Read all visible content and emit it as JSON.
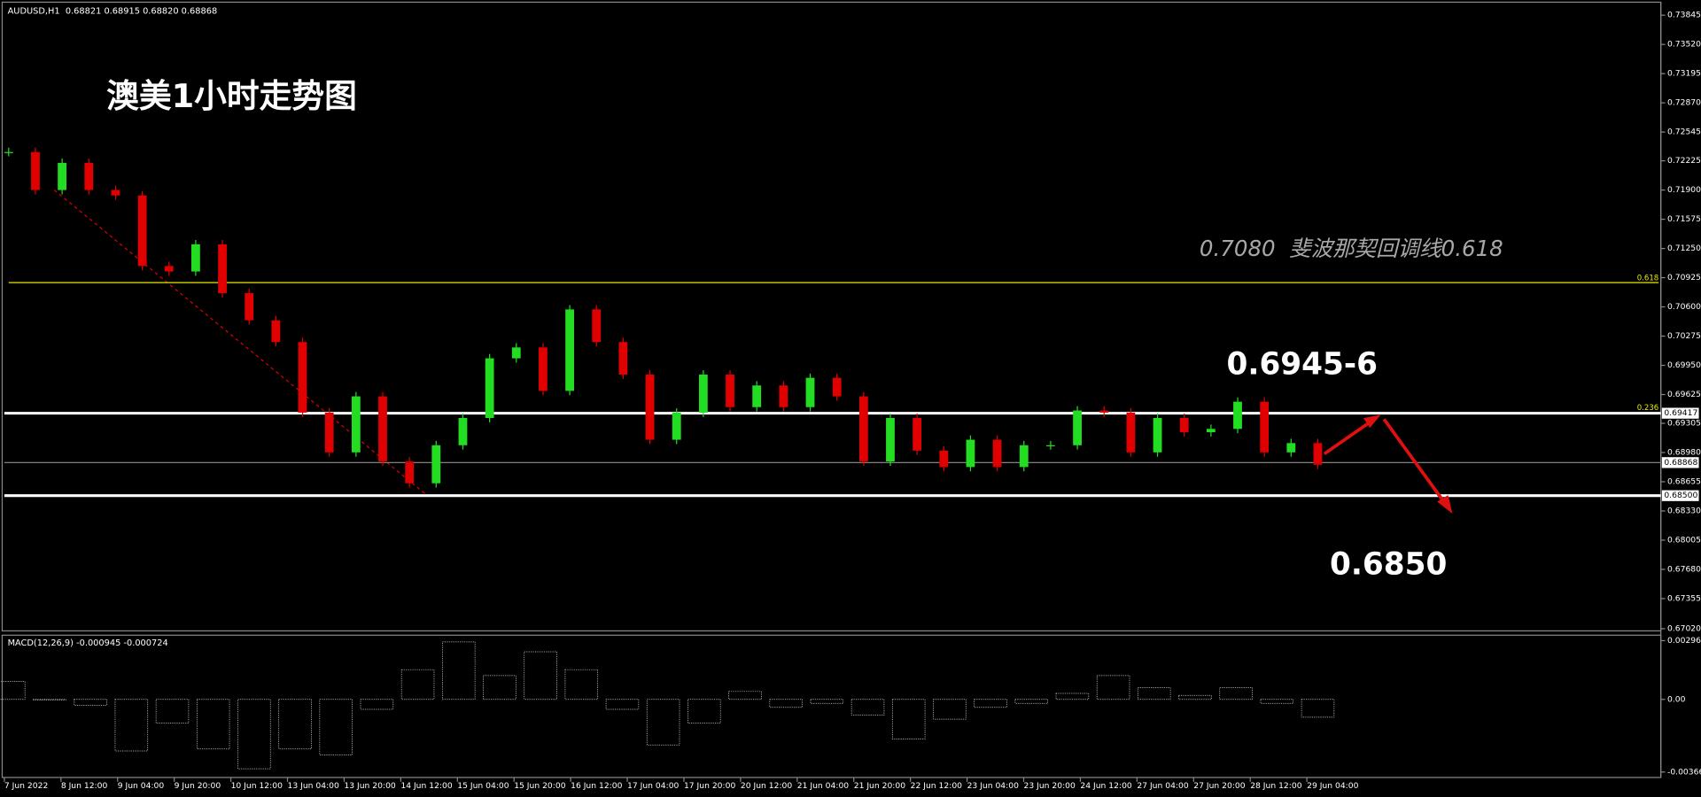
{
  "header": "AUDUSD,H1  0.68821 0.68915 0.68820 0.68868",
  "title": "澳美1小时走势图",
  "annotations": {
    "fib_note": "0.7080  斐波那契回调线0.618",
    "resistance": "0.6945-6",
    "target": "0.6850"
  },
  "price_axis": {
    "ylim": [
      0.6702,
      0.73845
    ],
    "yticks": [
      0.73845,
      {
        "value": 0.7352,
        "label": "0.73520"
      },
      0.73195,
      {
        "value": 0.7287,
        "label": "0.72870"
      },
      0.72545,
      0.72225,
      {
        "value": 0.719,
        "label": "0.71900"
      },
      0.71575,
      {
        "value": 0.7125,
        "label": "0.71250"
      },
      0.70925,
      {
        "value": 0.706,
        "label": "0.70600"
      },
      0.70275,
      {
        "value": 0.6995,
        "label": "0.69950"
      },
      0.69625,
      0.69305,
      {
        "value": 0.6898,
        "label": "0.68980"
      },
      0.68655,
      {
        "value": 0.6833,
        "label": "0.68330"
      },
      0.68005,
      {
        "value": 0.6768,
        "label": "0.67680"
      },
      0.67355,
      {
        "value": 0.6702,
        "label": "0.67020"
      }
    ]
  },
  "levels": [
    {
      "value": 0.69417,
      "label": "0.69417",
      "color": "#ffffff"
    },
    {
      "value": 0.68868,
      "label": "0.68868",
      "color": "#808080"
    },
    {
      "value": 0.685,
      "label": "0.68500",
      "color": "#ffffff"
    }
  ],
  "fib_levels": [
    {
      "label": "0.618",
      "value": 0.7087,
      "color": "#e8e800"
    },
    {
      "label": "0.236",
      "value": 0.6943,
      "color": "#e8e800"
    }
  ],
  "time_axis": [
    "7 Jun 2022",
    "8 Jun 12:00",
    "9 Jun 04:00",
    "9 Jun 20:00",
    "10 Jun 12:00",
    "13 Jun 04:00",
    "13 Jun 20:00",
    "14 Jun 12:00",
    "15 Jun 04:00",
    "15 Jun 20:00",
    "16 Jun 12:00",
    "17 Jun 04:00",
    "17 Jun 20:00",
    "20 Jun 12:00",
    "21 Jun 04:00",
    "21 Jun 20:00",
    "22 Jun 12:00",
    "23 Jun 04:00",
    "23 Jun 20:00",
    "24 Jun 12:00",
    "27 Jun 04:00",
    "27 Jun 20:00",
    "28 Jun 12:00",
    "29 Jun 04:00"
  ],
  "closes": [
    0.72323,
    0.719,
    0.72202,
    0.719,
    0.7184,
    0.71055,
    0.70994,
    0.71296,
    0.70753,
    0.70451,
    0.70209,
    0.69424,
    0.68982,
    0.69605,
    0.6888,
    0.68638,
    0.69061,
    0.69364,
    0.70028,
    0.70149,
    0.69666,
    0.70572,
    0.70209,
    0.69847,
    0.69122,
    0.69424,
    0.69847,
    0.69485,
    0.69726,
    0.69485,
    0.69811,
    0.69605,
    0.6888,
    0.69364,
    0.69001,
    0.68819,
    0.69122,
    0.68819,
    0.69061,
    0.69061,
    0.69448,
    0.69424,
    0.68982,
    0.69364,
    0.69206,
    0.69243,
    0.69545,
    0.68982,
    0.69085,
    0.68844
  ],
  "macd": {
    "label": "MACD(12,26,9) -0.000945 -0.000724",
    "ylim": [
      -0.003664,
      0.002963
    ],
    "yticks": [
      0.002963,
      {
        "value": 0,
        "label": "0.00"
      },
      -0.003664
    ],
    "values": [
      0.0009,
      0,
      -0.0003,
      -0.0026,
      -0.0012,
      -0.0025,
      -0.0035,
      -0.0025,
      -0.0028,
      -0.0005,
      0.0015,
      0.0029,
      0.0012,
      0.0024,
      0.0015,
      -0.0005,
      -0.0023,
      -0.0012,
      0.0004,
      -0.0004,
      -0.0002,
      -0.0008,
      -0.002,
      -0.001,
      -0.0004,
      -0.0002,
      0.0003,
      0.0012,
      0.0006,
      0.0002,
      0.0006,
      -0.0002,
      -0.0009
    ]
  }
}
